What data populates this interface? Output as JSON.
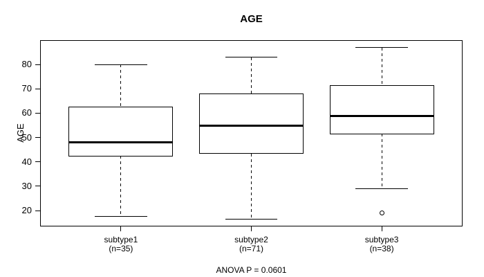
{
  "chart_data": {
    "type": "boxplot",
    "title": "AGE",
    "ylabel": "AGE",
    "annotation": "ANOVA P = 0.0601",
    "ylim": [
      13.5,
      90
    ],
    "yticks": [
      20,
      30,
      40,
      50,
      60,
      70,
      80
    ],
    "grid": false,
    "legend": null,
    "categories": [
      "subtype1",
      "subtype2",
      "subtype3"
    ],
    "groups": [
      {
        "label": "subtype1",
        "n_label": "(n=35)",
        "n": 35,
        "whisker_low": 17.5,
        "q1": 42.5,
        "median": 48,
        "q3": 62.5,
        "whisker_high": 80,
        "outliers": []
      },
      {
        "label": "subtype2",
        "n_label": "(n=71)",
        "n": 71,
        "whisker_low": 16.5,
        "q1": 43.5,
        "median": 55,
        "q3": 68,
        "whisker_high": 83,
        "outliers": []
      },
      {
        "label": "subtype3",
        "n_label": "(n=38)",
        "n": 38,
        "whisker_low": 29,
        "q1": 51.5,
        "median": 59,
        "q3": 71.5,
        "whisker_high": 87,
        "outliers": [
          19
        ]
      }
    ],
    "colors": {
      "stroke": "#000000",
      "background": "#ffffff"
    }
  }
}
